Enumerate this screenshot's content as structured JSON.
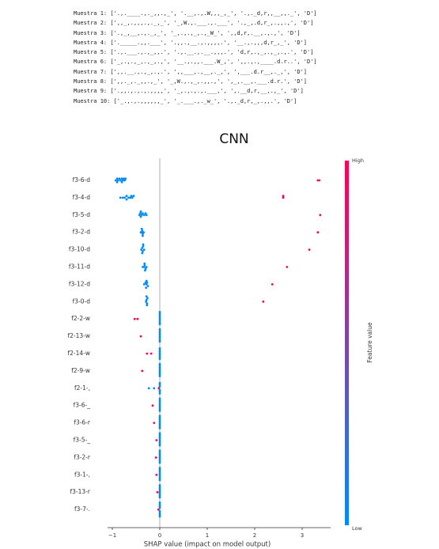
{
  "samples": [
    "Muestra 1: ['.,.____.,._,,.,_', '.__,.,.W,,,_,_', '.,._d,r,,__,,._', 'D']",
    "Muestra 2: [',,_,.,,,.,._,_', '_,W.,.___.,.___', '.,_,.d,r_,.,,.,', 'D']",
    "Muestra 3: ['.,_,__,.,._,_', '_,.,.,_,.,_W_', ',,d,r,.__,.,.,', 'D']",
    "Muestra 4: ['._____.,,.___', '.,,.,__.,.,,,,.', '__.,.,,,d,r_,_', 'D']",
    "Muestra 5: ['.,.___.,.,_,,.', '.,.__.,.__.,,,.', 'd,r,.,_,.,_,.,.', 'D']",
    "Muestra 6: ['_,.,.,_,.,_,.,', '__.,.,,.___.W_,', ',,.,.,____.d.r..', 'D']",
    "Muestra 7: [',,.__.,.,_,.,.', ',,___,.,__,._,', ',___.d.r__,._,', 'D']",
    "Muestra 8: [',,._,._,,.,_', '_,W.,.,_,.,,.,', ',_,.__,.___.d.r.', 'D']",
    "Muestra 9: ['.,,.,.,.,.,,,,', '_,.,.,.,.___,', ',.__d,r,__,.,_', 'D']",
    "Muestra 10: ['_.,.,.,,,,,,_', '_.___.,._w_', '.,._d,r,_,.,,.', 'D']"
  ],
  "chart_data": {
    "type": "beeswarm",
    "title": "CNN",
    "x_label": "SHAP value (impact on model output)",
    "colorbar_label": "Feature value",
    "colorbar_high": "High",
    "colorbar_low": "Low",
    "colormap": [
      "#008bfb",
      "#ff0052"
    ],
    "xlim": [
      -1.1,
      3.6
    ],
    "xticks": [
      {
        "value": -1,
        "label": "−1"
      },
      0,
      1,
      2,
      3
    ],
    "features": [
      {
        "name": "f3-6-d",
        "shap": [
          -0.93,
          -0.9,
          -0.88,
          -0.85,
          -0.83,
          -0.8,
          -0.78,
          -0.76,
          -0.74,
          -0.72,
          -0.9,
          -0.8,
          3.33,
          3.36
        ],
        "feature_values": [
          0,
          0,
          0,
          0,
          0,
          0,
          0,
          0,
          0,
          0,
          0,
          0,
          1,
          1
        ]
      },
      {
        "name": "f3-4-d",
        "shap": [
          -0.83,
          -0.78,
          -0.74,
          -0.7,
          -0.66,
          -0.62,
          -0.58,
          -0.55,
          -0.6,
          -0.7,
          2.6,
          2.6
        ],
        "feature_values": [
          0,
          0,
          0,
          0,
          0,
          0,
          0,
          0,
          0,
          0,
          1,
          1
        ]
      },
      {
        "name": "f3-5-d",
        "shap": [
          -0.43,
          -0.41,
          -0.4,
          -0.38,
          -0.36,
          -0.33,
          -0.3,
          -0.28,
          -0.4,
          3.38
        ],
        "feature_values": [
          0,
          0,
          0,
          0,
          0,
          0,
          0,
          0,
          0,
          1
        ]
      },
      {
        "name": "f3-2-d",
        "shap": [
          -0.4,
          -0.38,
          -0.37,
          -0.36,
          -0.34,
          -0.38,
          -0.36,
          3.33
        ],
        "feature_values": [
          0,
          0,
          0,
          0,
          0,
          0,
          0,
          1
        ]
      },
      {
        "name": "f3-10-d",
        "shap": [
          -0.39,
          -0.37,
          -0.36,
          -0.35,
          -0.33,
          -0.37,
          -0.35,
          3.15
        ],
        "feature_values": [
          0,
          0,
          0,
          0,
          0,
          0,
          0,
          1
        ]
      },
      {
        "name": "f3-11-d",
        "shap": [
          -0.36,
          -0.33,
          -0.32,
          -0.3,
          -0.28,
          -0.32,
          -0.31,
          2.68
        ],
        "feature_values": [
          0,
          0,
          0,
          0,
          0,
          0,
          0,
          1
        ]
      },
      {
        "name": "f3-12-d",
        "shap": [
          -0.33,
          -0.3,
          -0.28,
          -0.27,
          -0.25,
          -0.28,
          -0.29,
          2.37
        ],
        "feature_values": [
          0,
          0,
          0,
          0,
          0,
          0,
          0,
          1
        ]
      },
      {
        "name": "f3-0-d",
        "shap": [
          -0.29,
          -0.28,
          -0.27,
          -0.26,
          -0.27,
          -0.28,
          2.18
        ],
        "feature_values": [
          0,
          0,
          0,
          0,
          0,
          0,
          1
        ]
      },
      {
        "name": "f2-2-w",
        "shap": [
          -0.53,
          -0.47,
          0,
          0,
          0,
          0,
          0,
          0,
          0,
          0
        ],
        "feature_values": [
          1,
          1,
          0,
          0,
          0,
          0,
          0,
          0,
          0,
          0
        ]
      },
      {
        "name": "f2-13-w",
        "shap": [
          -0.4,
          0,
          0,
          0,
          0,
          0,
          0,
          0,
          0
        ],
        "feature_values": [
          1,
          0,
          0,
          0,
          0,
          0,
          0,
          0,
          0
        ]
      },
      {
        "name": "f2-14-w",
        "shap": [
          -0.27,
          -0.18,
          0,
          0,
          0,
          0,
          0,
          0,
          0
        ],
        "feature_values": [
          1,
          1,
          0,
          0,
          0,
          0,
          0,
          0,
          0
        ]
      },
      {
        "name": "f2-9-w",
        "shap": [
          -0.37,
          0,
          0,
          0,
          0,
          0,
          0,
          0,
          0
        ],
        "feature_values": [
          1,
          0,
          0,
          0,
          0,
          0,
          0,
          0,
          0
        ]
      },
      {
        "name": "f2-1-,",
        "shap": [
          -0.23,
          -0.12,
          -0.02,
          0,
          0,
          0,
          0,
          0,
          0
        ],
        "feature_values": [
          0,
          0,
          1,
          0,
          0,
          0,
          0,
          0,
          0
        ]
      },
      {
        "name": "f3-6-_",
        "shap": [
          -0.15,
          0,
          0,
          0,
          0,
          0,
          0,
          0,
          0
        ],
        "feature_values": [
          1,
          0,
          0,
          0,
          0,
          0,
          0,
          0,
          0
        ]
      },
      {
        "name": "f3-6-r",
        "shap": [
          -0.12,
          0,
          0,
          0,
          0,
          0,
          0,
          0,
          0
        ],
        "feature_values": [
          1,
          0,
          0,
          0,
          0,
          0,
          0,
          0,
          0
        ]
      },
      {
        "name": "f3-5-_",
        "shap": [
          -0.07,
          0,
          0,
          0,
          0,
          0,
          0,
          0,
          0
        ],
        "feature_values": [
          1,
          0,
          0,
          0,
          0,
          0,
          0,
          0,
          0
        ]
      },
      {
        "name": "f3-2-r",
        "shap": [
          -0.08,
          0,
          0,
          0,
          0,
          0,
          0,
          0,
          0
        ],
        "feature_values": [
          1,
          0,
          0,
          0,
          0,
          0,
          0,
          0,
          0
        ]
      },
      {
        "name": "f3-1-,",
        "shap": [
          -0.07,
          0,
          0,
          0,
          0,
          0,
          0,
          0,
          0
        ],
        "feature_values": [
          1,
          0,
          0,
          0,
          0,
          0,
          0,
          0,
          0
        ]
      },
      {
        "name": "f3-13-r",
        "shap": [
          -0.05,
          0,
          0,
          0,
          0,
          0,
          0,
          0,
          0
        ],
        "feature_values": [
          1,
          0,
          0,
          0,
          0,
          0,
          0,
          0,
          0
        ]
      },
      {
        "name": "f3-7-.",
        "shap": [
          -0.03,
          0,
          0,
          0,
          0,
          0,
          0,
          0,
          0
        ],
        "feature_values": [
          1,
          0,
          0,
          0,
          0,
          0,
          0,
          0,
          0
        ]
      }
    ]
  }
}
